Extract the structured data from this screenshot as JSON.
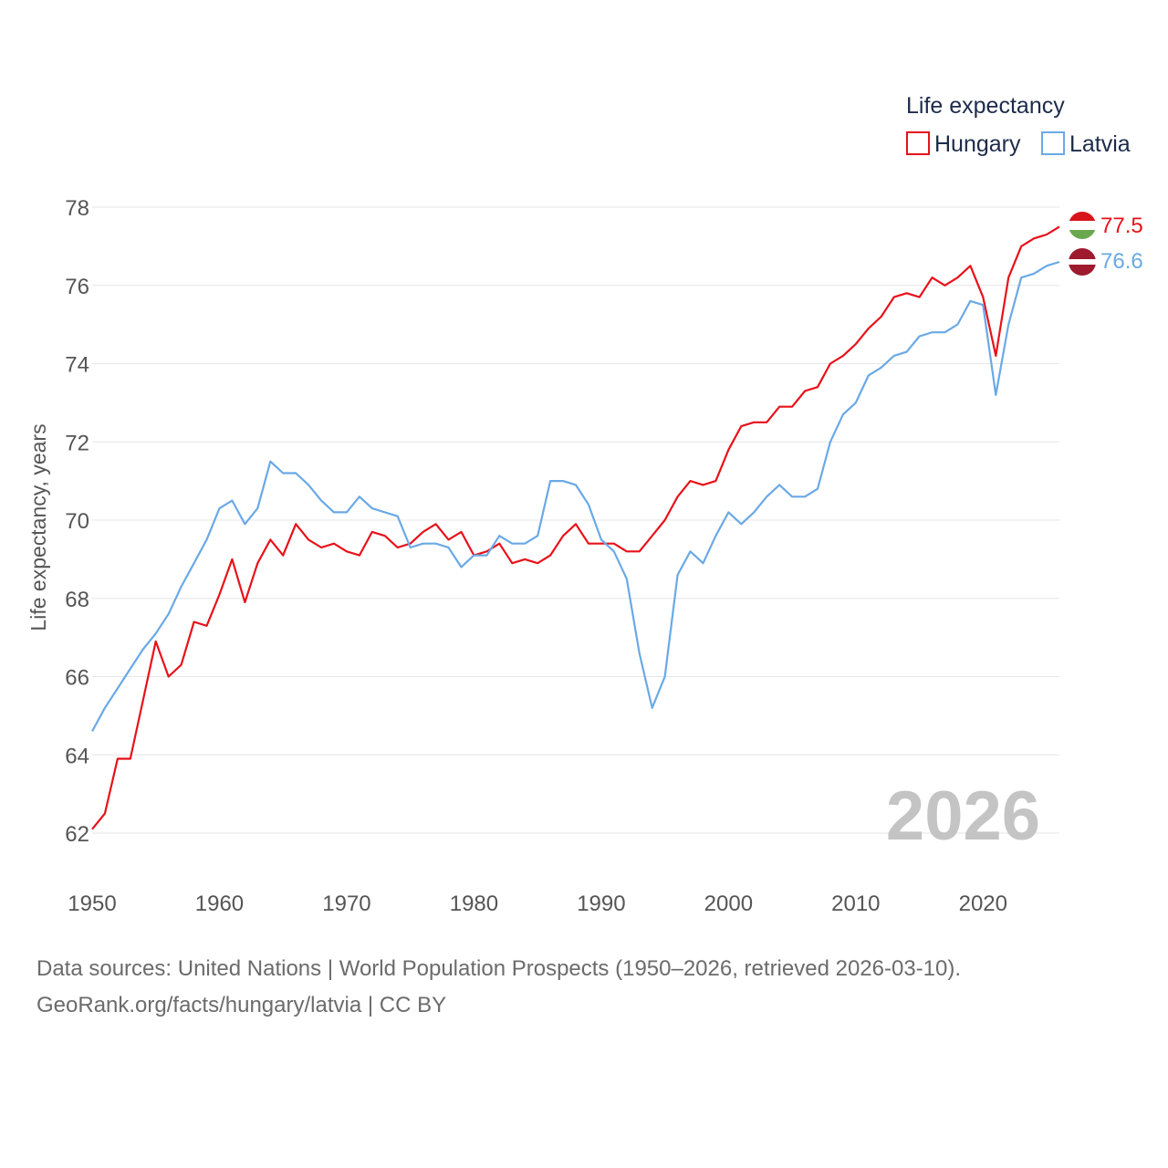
{
  "chart_data": {
    "type": "line",
    "title": "",
    "legend_title": "Life expectancy",
    "ylabel": "Life expectancy, years",
    "xlabel": "",
    "xlim": [
      1950,
      2026
    ],
    "ylim": [
      61.5,
      78.5
    ],
    "x_ticks": [
      1950,
      1960,
      1970,
      1980,
      1990,
      2000,
      2010,
      2020
    ],
    "y_ticks": [
      62,
      64,
      66,
      68,
      70,
      72,
      74,
      76,
      78
    ],
    "grid": true,
    "legend_position": "top-right",
    "current_year": "2026",
    "x": [
      1950,
      1951,
      1952,
      1953,
      1954,
      1955,
      1956,
      1957,
      1958,
      1959,
      1960,
      1961,
      1962,
      1963,
      1964,
      1965,
      1966,
      1967,
      1968,
      1969,
      1970,
      1971,
      1972,
      1973,
      1974,
      1975,
      1976,
      1977,
      1978,
      1979,
      1980,
      1981,
      1982,
      1983,
      1984,
      1985,
      1986,
      1987,
      1988,
      1989,
      1990,
      1991,
      1992,
      1993,
      1994,
      1995,
      1996,
      1997,
      1998,
      1999,
      2000,
      2001,
      2002,
      2003,
      2004,
      2005,
      2006,
      2007,
      2008,
      2009,
      2010,
      2011,
      2012,
      2013,
      2014,
      2015,
      2016,
      2017,
      2018,
      2019,
      2020,
      2021,
      2022,
      2023,
      2024,
      2025,
      2026
    ],
    "series": [
      {
        "name": "Hungary",
        "color": "#e8111a",
        "end_label": "77.5",
        "values": [
          62.1,
          62.5,
          63.9,
          63.9,
          65.4,
          66.9,
          66.0,
          66.3,
          67.4,
          67.3,
          68.1,
          69.0,
          67.9,
          68.9,
          69.5,
          69.1,
          69.9,
          69.5,
          69.3,
          69.4,
          69.2,
          69.1,
          69.7,
          69.6,
          69.3,
          69.4,
          69.7,
          69.9,
          69.5,
          69.7,
          69.1,
          69.2,
          69.4,
          68.9,
          69.0,
          68.9,
          69.1,
          69.6,
          69.9,
          69.4,
          69.4,
          69.4,
          69.2,
          69.2,
          69.6,
          70.0,
          70.6,
          71.0,
          70.9,
          71.0,
          71.8,
          72.4,
          72.5,
          72.5,
          72.9,
          72.9,
          73.3,
          73.4,
          74.0,
          74.2,
          74.5,
          74.9,
          75.2,
          75.7,
          75.8,
          75.7,
          76.2,
          76.0,
          76.2,
          76.5,
          75.7,
          74.2,
          76.2,
          77.0,
          77.2,
          77.3,
          77.5
        ]
      },
      {
        "name": "Latvia",
        "color": "#6aa9e6",
        "end_label": "76.6",
        "values": [
          64.6,
          65.2,
          65.7,
          66.2,
          66.7,
          67.1,
          67.6,
          68.3,
          68.9,
          69.5,
          70.3,
          70.5,
          69.9,
          70.3,
          71.5,
          71.2,
          71.2,
          70.9,
          70.5,
          70.2,
          70.2,
          70.6,
          70.3,
          70.2,
          70.1,
          69.3,
          69.4,
          69.4,
          69.3,
          68.8,
          69.1,
          69.1,
          69.6,
          69.4,
          69.4,
          69.6,
          71.0,
          71.0,
          70.9,
          70.4,
          69.5,
          69.2,
          68.5,
          66.6,
          65.2,
          66.0,
          68.6,
          69.2,
          68.9,
          69.6,
          70.2,
          69.9,
          70.2,
          70.6,
          70.9,
          70.6,
          70.6,
          70.8,
          72.0,
          72.7,
          73.0,
          73.7,
          73.9,
          74.2,
          74.3,
          74.7,
          74.8,
          74.8,
          75.0,
          75.6,
          75.5,
          73.2,
          75.0,
          76.2,
          76.3,
          76.5,
          76.6
        ]
      }
    ]
  },
  "footer": {
    "line1": "Data sources: United Nations | World Population Prospects (1950–2026, retrieved 2026-03-10).",
    "line2": "GeoRank.org/facts/hungary/latvia | CC BY"
  }
}
